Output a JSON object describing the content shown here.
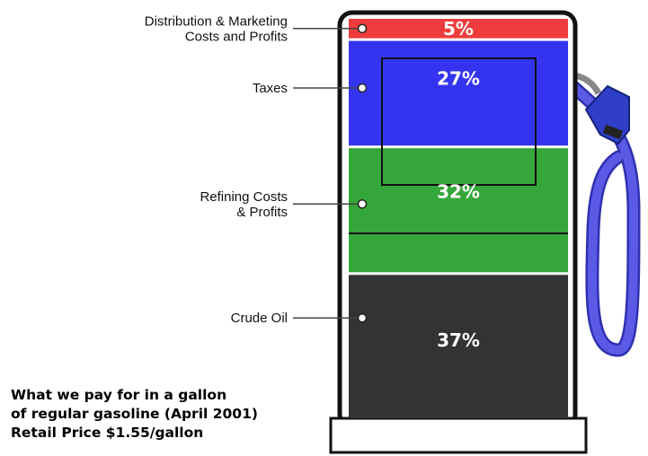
{
  "chart_data": {
    "type": "bar",
    "stacked": true,
    "title": "What we pay for in a gallon of regular gasoline (April 2001)",
    "subtitle": "Retail Price $1.55/gallon",
    "categories": [
      "Distribution & Marketing Costs and Profits",
      "Taxes",
      "Refining Costs & Profits",
      "Crude Oil"
    ],
    "values": [
      5,
      27,
      32,
      37
    ],
    "value_labels": [
      "5%",
      "27%",
      "32%",
      "37%"
    ],
    "label_lines": [
      [
        "Distribution & Marketing",
        "Costs and Profits"
      ],
      [
        "Taxes"
      ],
      [
        "Refining Costs",
        "& Profits"
      ],
      [
        "Crude Oil"
      ]
    ],
    "colors": [
      "#ef3b3b",
      "#3434f0",
      "#35a639",
      "#333333"
    ],
    "value_text_color": "#ffffff",
    "unit": "%"
  },
  "caption": {
    "line1": "What we pay for in a gallon",
    "line2": "of regular gasoline (April 2001)",
    "line3": "Retail Price $1.55/gallon"
  },
  "colors": {
    "pump_outline": "#111111",
    "hose": "#4a4ad8",
    "nozzle": "#2f3fc8",
    "nozzle_metal": "#9a9a9a"
  }
}
